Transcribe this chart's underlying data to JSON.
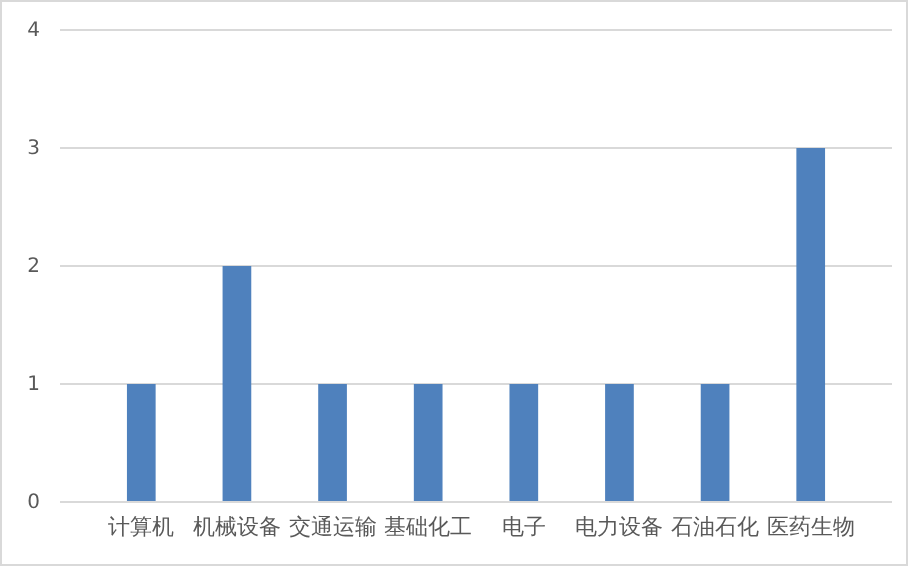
{
  "chart_data": {
    "type": "bar",
    "categories": [
      "计算机",
      "机械设备",
      "交通运输",
      "基础化工",
      "电子",
      "电力设备",
      "石油石化",
      "医药生物"
    ],
    "values": [
      1,
      2,
      1,
      1,
      1,
      1,
      1,
      3
    ],
    "color": "#4f81bd",
    "ylim": [
      0,
      4
    ],
    "yticks": [
      0,
      1,
      2,
      3,
      4
    ],
    "grid": "y"
  }
}
